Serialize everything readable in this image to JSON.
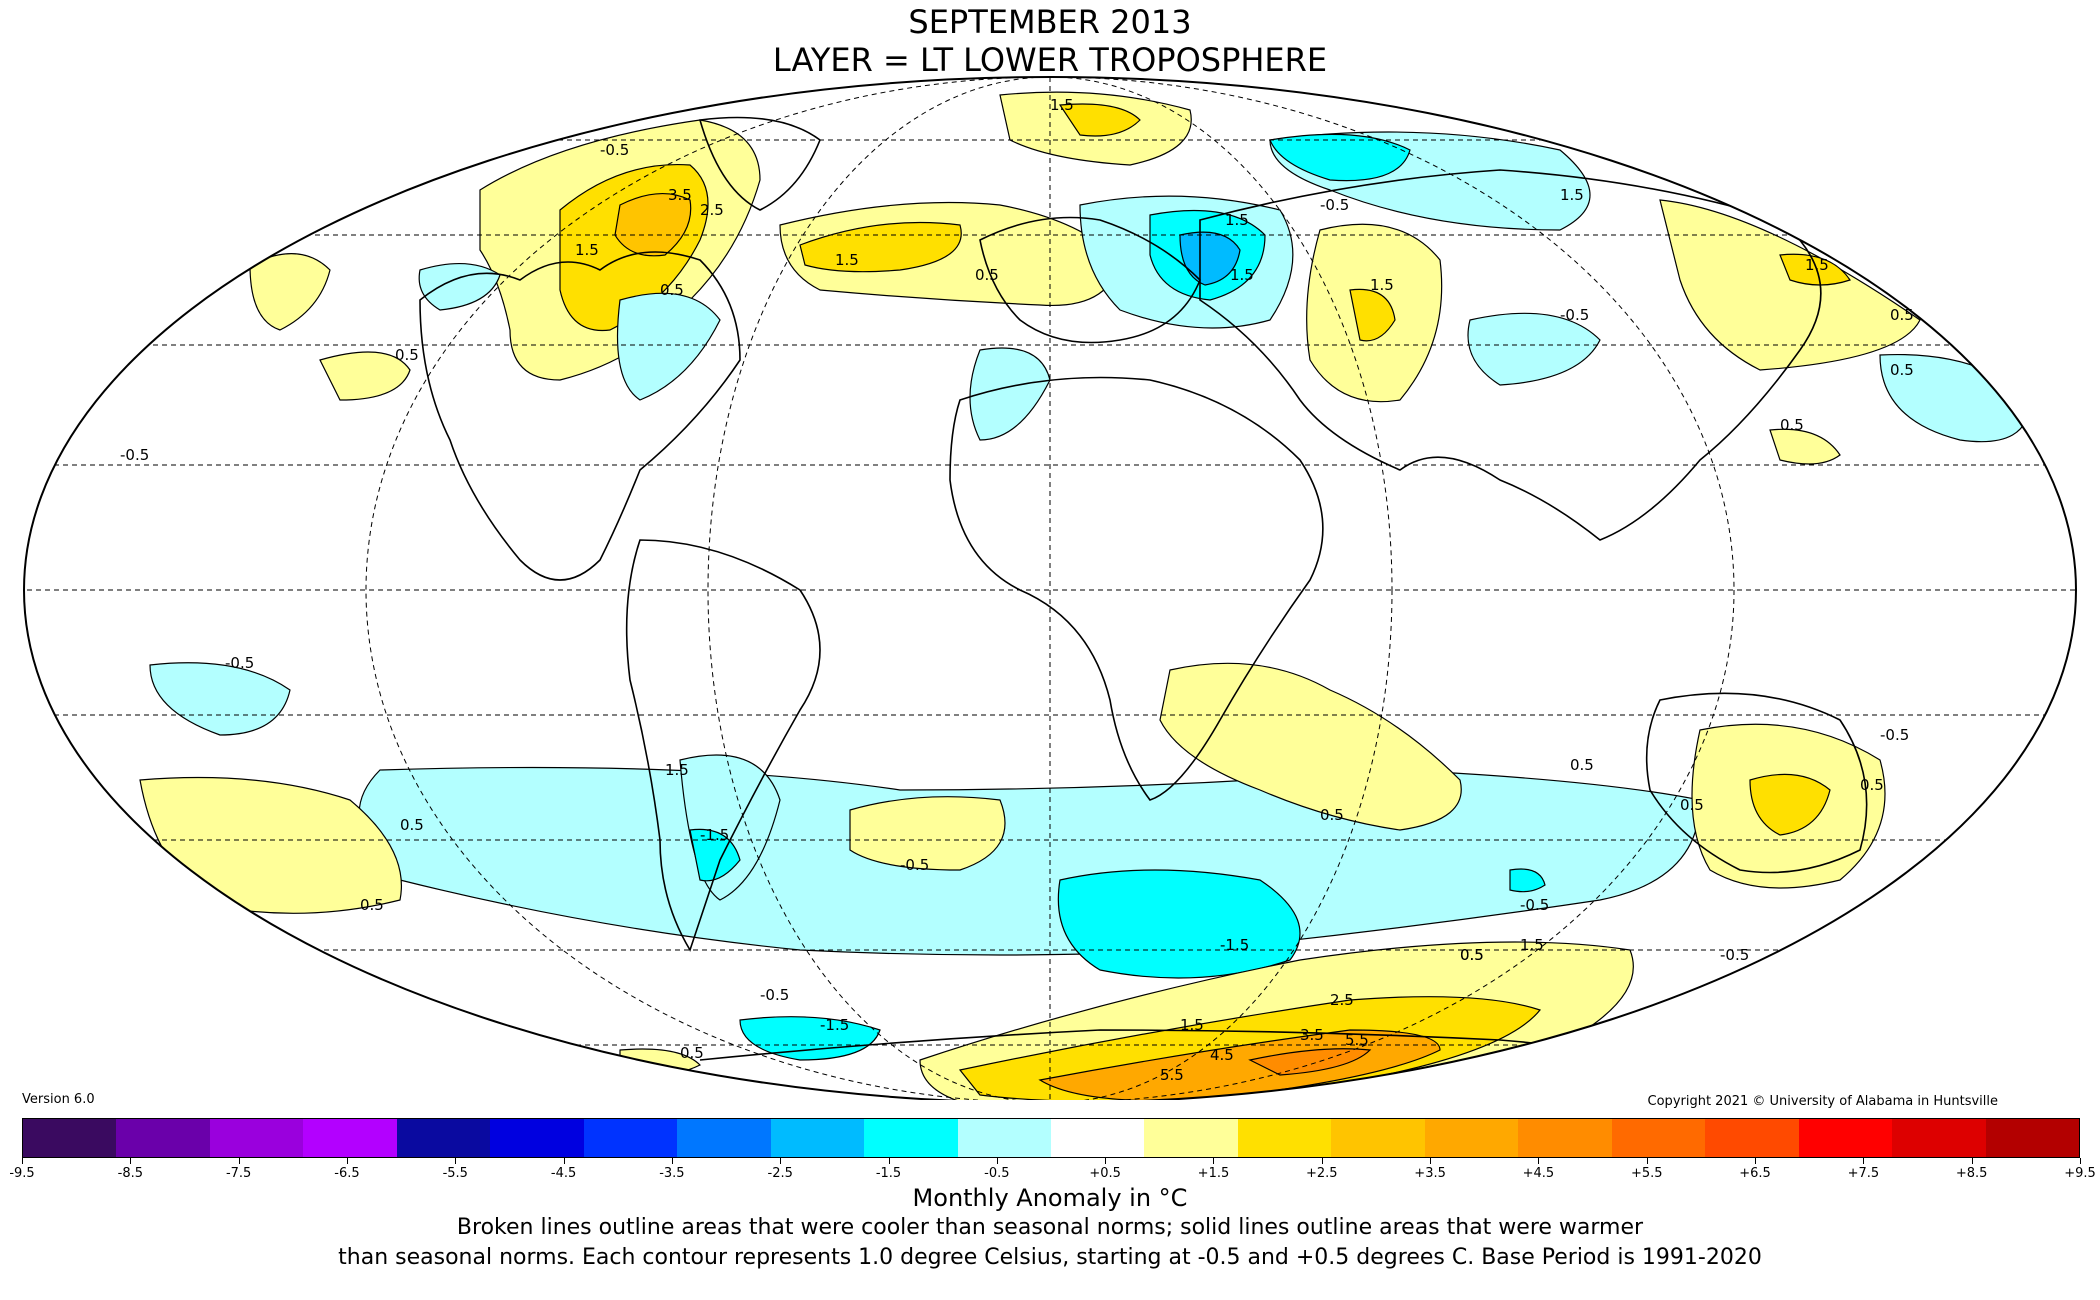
{
  "title_line1": "SEPTEMBER 2013",
  "title_line2": "LAYER = LT LOWER TROPOSPHERE",
  "version": "Version 6.0",
  "copyright": "Copyright 2021 © University of Alabama in Huntsville",
  "colorbar": {
    "colors": [
      "#3a0a60",
      "#6a00aa",
      "#9a00dd",
      "#b300ff",
      "#0a0aa0",
      "#0000e0",
      "#0033ff",
      "#0077ff",
      "#00bbff",
      "#00ffff",
      "#b3ffff",
      "#ffffff",
      "#ffff99",
      "#ffe000",
      "#ffc400",
      "#ffa800",
      "#ff8c00",
      "#ff6a00",
      "#ff4a00",
      "#ff0000",
      "#dd0000",
      "#b30000"
    ],
    "ticks": [
      "-9.5",
      "-8.5",
      "-7.5",
      "-6.5",
      "-5.5",
      "-4.5",
      "-3.5",
      "-2.5",
      "-1.5",
      "-0.5",
      "+0.5",
      "+1.5",
      "+2.5",
      "+3.5",
      "+4.5",
      "+5.5",
      "+6.5",
      "+7.5",
      "+8.5",
      "+9.5"
    ],
    "label": "Monthly Anomaly in °C"
  },
  "footnote_line1": "Broken lines outline areas that were cooler than seasonal norms; solid lines outline areas that were warmer",
  "footnote_line2": "than seasonal norms. Each contour represents 1.0 degree Celsius, starting at -0.5 and +0.5 degrees C. Base Period is 1991-2020",
  "contour_labels": [
    "3.5",
    "2.5",
    "1.5",
    "1.5",
    "1.5",
    "0.5",
    "-0.5",
    "0.5",
    "0.5",
    "1.5",
    "-0.5",
    "1.5",
    "1.5",
    "1.5",
    "0.5",
    "0.5",
    "-0.5",
    "-0.5",
    "0.5",
    "-0.5",
    "1.5",
    "0.5",
    "-0.5",
    "0.5",
    "0.5",
    "-1.5",
    "0.5",
    "-1.5",
    "0.5",
    "-0.5",
    "-1.5",
    "0.5",
    "1.5",
    "2.5",
    "3.5",
    "4.5",
    "5.5",
    "5.5",
    "-0.5",
    "-0.5",
    "0.5",
    "0.5",
    "-0.5",
    "0.5",
    "1.5",
    "1.5"
  ]
}
